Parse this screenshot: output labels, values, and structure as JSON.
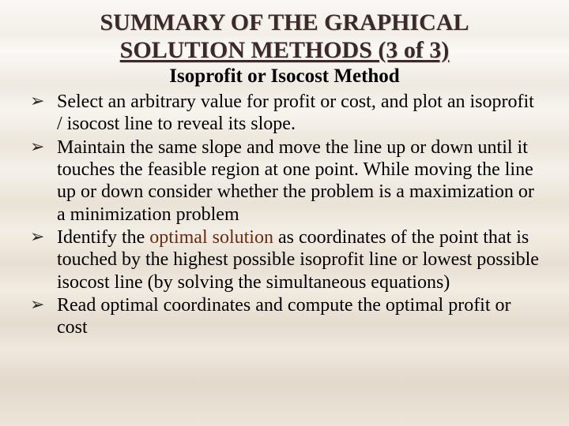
{
  "slide": {
    "title_line1": "SUMMARY OF THE GRAPHICAL",
    "title_line2": "SOLUTION METHODS (3 of 3)",
    "subtitle": "Isoprofit or Isocost Method",
    "bullets": [
      {
        "text": "Select an arbitrary value for profit or cost, and  plot an isoprofit / isocost line to reveal its slope."
      },
      {
        "text": "Maintain the same slope and move the line up or down until it touches  the feasible region at one point. While moving the line up or down consider whether the problem is a maximization or a minimization problem"
      },
      {
        "pre": "Identify the ",
        "highlight": "optimal solution",
        "post": " as coordinates of the point that is touched by the highest possible isoprofit line or lowest possible isocost line (by solving the simultaneous equations)"
      },
      {
        "text": "Read optimal coordinates and compute the optimal profit or cost"
      }
    ],
    "colors": {
      "title_color": "#3a2a2a",
      "text_color": "#000000",
      "highlight_color": "#6b2a10",
      "background_top": "#faf8f5",
      "background_bottom": "#ede5d9"
    },
    "fonts": {
      "family": "Times New Roman",
      "title_size_pt": 30,
      "subtitle_size_pt": 25,
      "body_size_pt": 24
    }
  }
}
